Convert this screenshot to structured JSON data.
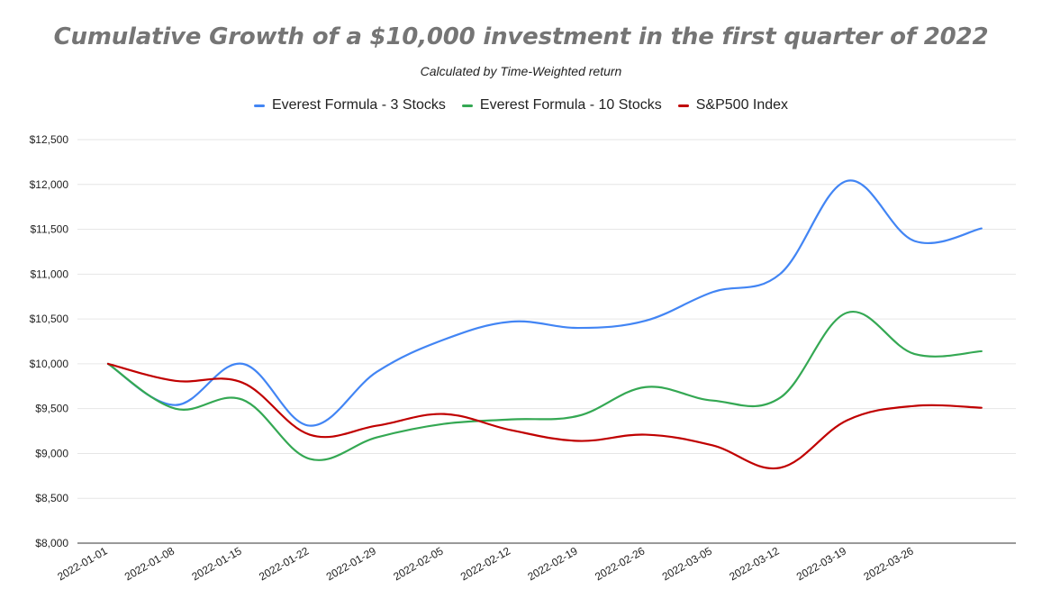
{
  "chart_data": {
    "type": "line",
    "title": "Cumulative Growth of a $10,000 investment in the first quarter of 2022",
    "subtitle": "Calculated by Time-Weighted return",
    "xlabel": "",
    "ylabel": "",
    "ylim": [
      8000,
      12500
    ],
    "y_ticks": [
      "$8,000",
      "$8,500",
      "$9,000",
      "$9,500",
      "$10,000",
      "$10,500",
      "$11,000",
      "$11,500",
      "$12,000",
      "$12,500"
    ],
    "x_tick_labels": [
      "2022-01-01",
      "2022-01-08",
      "2022-01-15",
      "2022-01-22",
      "2022-01-29",
      "2022-02-05",
      "2022-02-12",
      "2022-02-19",
      "2022-02-26",
      "2022-03-05",
      "2022-03-12",
      "2022-03-19",
      "2022-03-26"
    ],
    "grid": true,
    "legend_position": "top",
    "x": [
      "2022-01-01",
      "2022-01-08",
      "2022-01-15",
      "2022-01-22",
      "2022-01-29",
      "2022-02-05",
      "2022-02-12",
      "2022-02-19",
      "2022-02-26",
      "2022-03-05",
      "2022-03-12",
      "2022-03-19",
      "2022-03-26",
      "2022-04-02"
    ],
    "series": [
      {
        "name": "Everest Formula - 3 Stocks",
        "color": "#4285f4",
        "values": [
          10000,
          9540,
          10000,
          9310,
          9910,
          10270,
          10470,
          10400,
          10480,
          10800,
          11000,
          12040,
          11370,
          11510
        ]
      },
      {
        "name": "Everest Formula - 10 Stocks",
        "color": "#34a853",
        "values": [
          10000,
          9500,
          9600,
          8940,
          9180,
          9330,
          9380,
          9420,
          9740,
          9590,
          9620,
          10570,
          10110,
          10140
        ]
      },
      {
        "name": "S&P500 Index",
        "color": "#c00000",
        "values": [
          10000,
          9810,
          9790,
          9210,
          9310,
          9440,
          9260,
          9140,
          9210,
          9090,
          8840,
          9370,
          9530,
          9510
        ]
      }
    ]
  }
}
